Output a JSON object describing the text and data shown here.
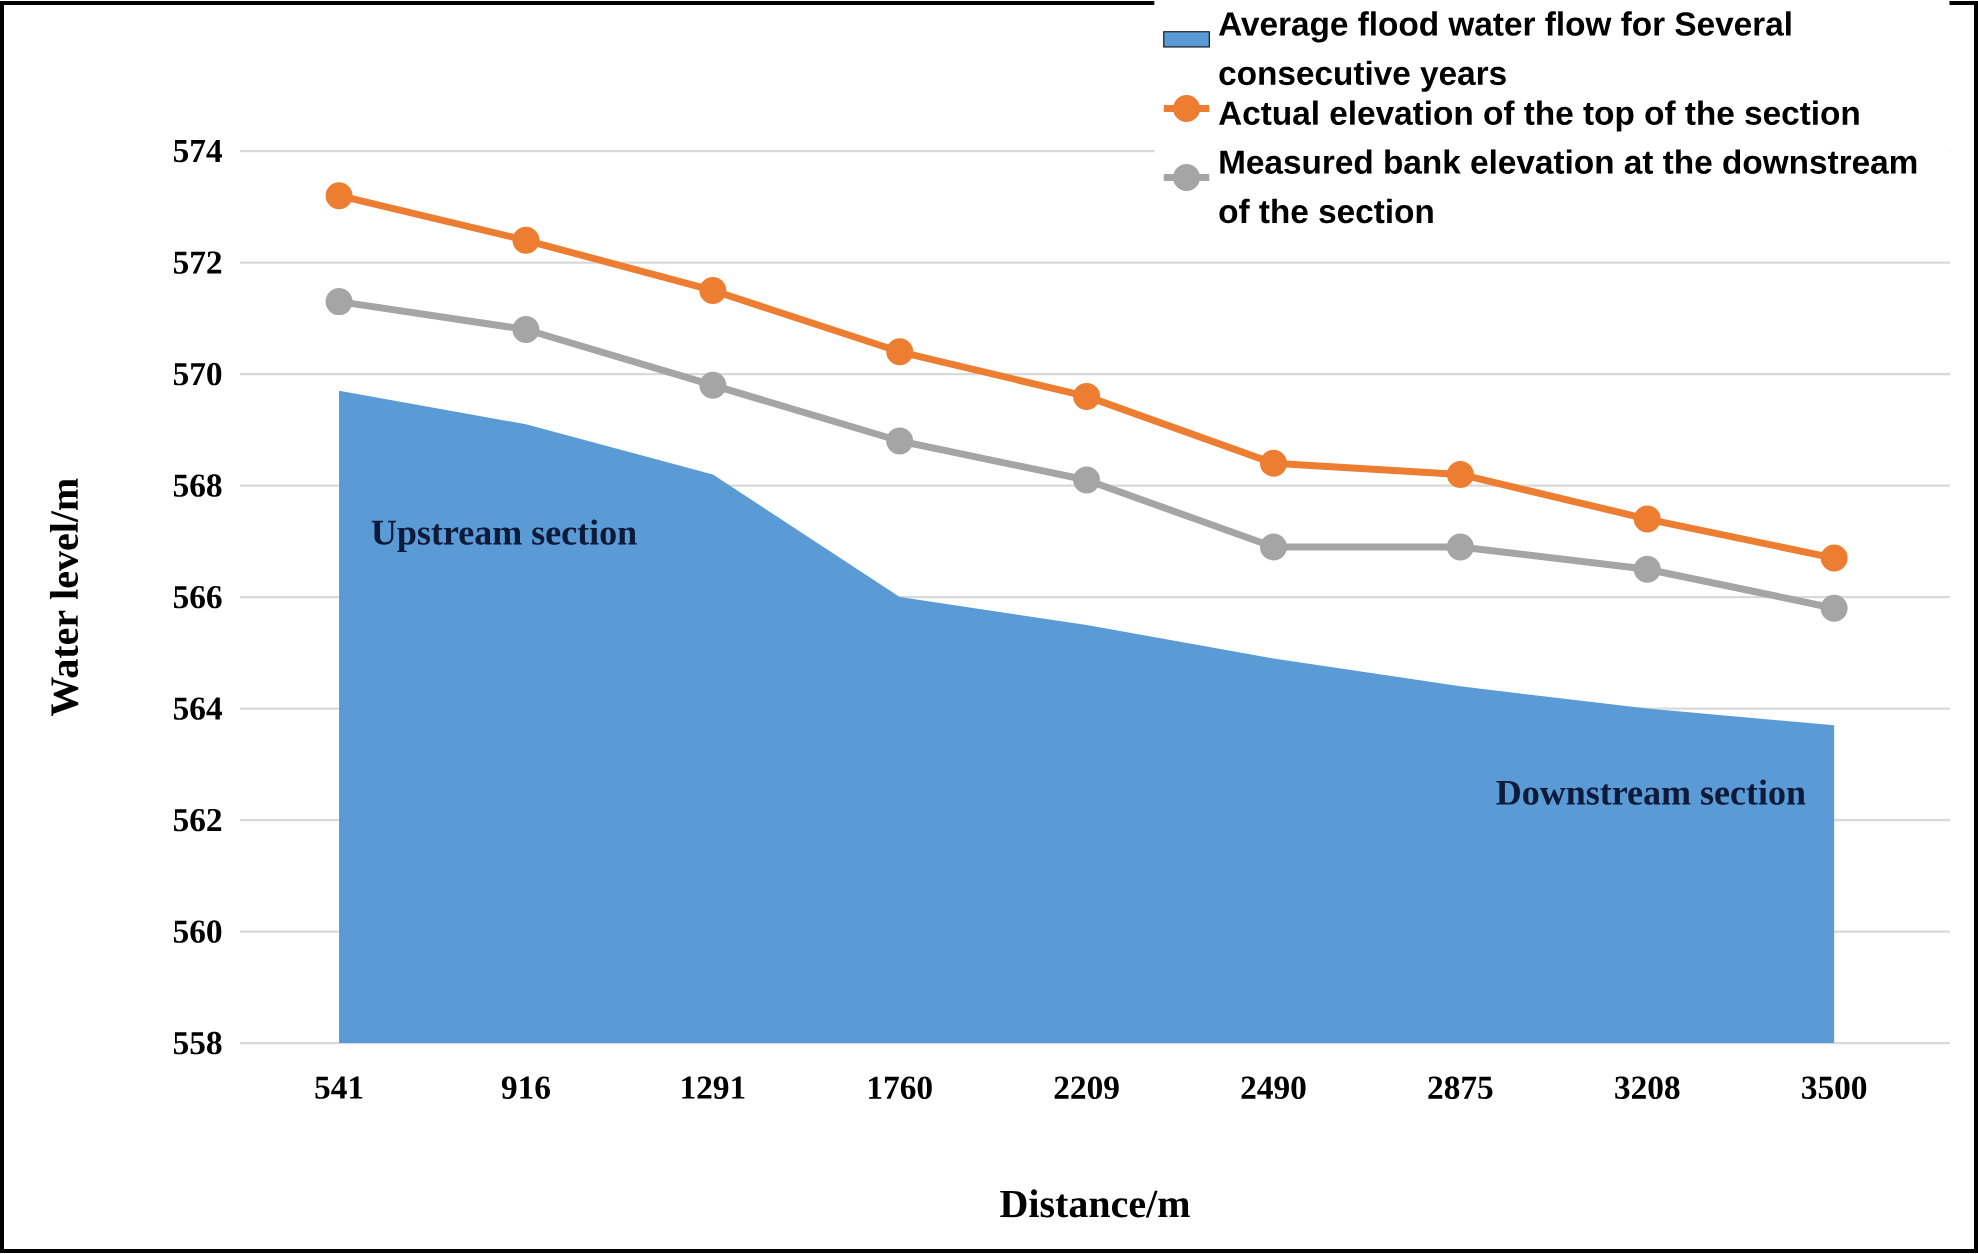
{
  "chart_data": {
    "type": "line",
    "xlabel": "Distance/m",
    "ylabel": "Water level/m",
    "categories": [
      "541",
      "916",
      "1291",
      "1760",
      "2209",
      "2490",
      "2875",
      "3208",
      "3500"
    ],
    "series": [
      {
        "name": "Average flood water flow for Several consecutive years",
        "type": "area",
        "color": "#5b9bd5",
        "values": [
          569.7,
          569.1,
          568.2,
          566.0,
          565.5,
          564.9,
          564.4,
          564.0,
          563.7
        ]
      },
      {
        "name": "Actual elevation of the top of the section",
        "type": "line",
        "color": "#ed7d31",
        "marker": "circle",
        "values": [
          573.2,
          572.4,
          571.5,
          570.4,
          569.6,
          568.4,
          568.2,
          567.4,
          566.7
        ]
      },
      {
        "name": "Measured bank elevation at the downstream of the section",
        "type": "line",
        "color": "#a5a5a5",
        "marker": "circle",
        "values": [
          571.3,
          570.8,
          569.8,
          568.8,
          568.1,
          566.9,
          566.9,
          566.5,
          565.8
        ]
      }
    ],
    "ylim": [
      558,
      574
    ],
    "yticks": [
      558,
      560,
      562,
      564,
      566,
      568,
      570,
      572,
      574
    ],
    "grid": "y",
    "legend": "top right",
    "annotations": [
      "Upstream section",
      "Downstream section"
    ]
  }
}
